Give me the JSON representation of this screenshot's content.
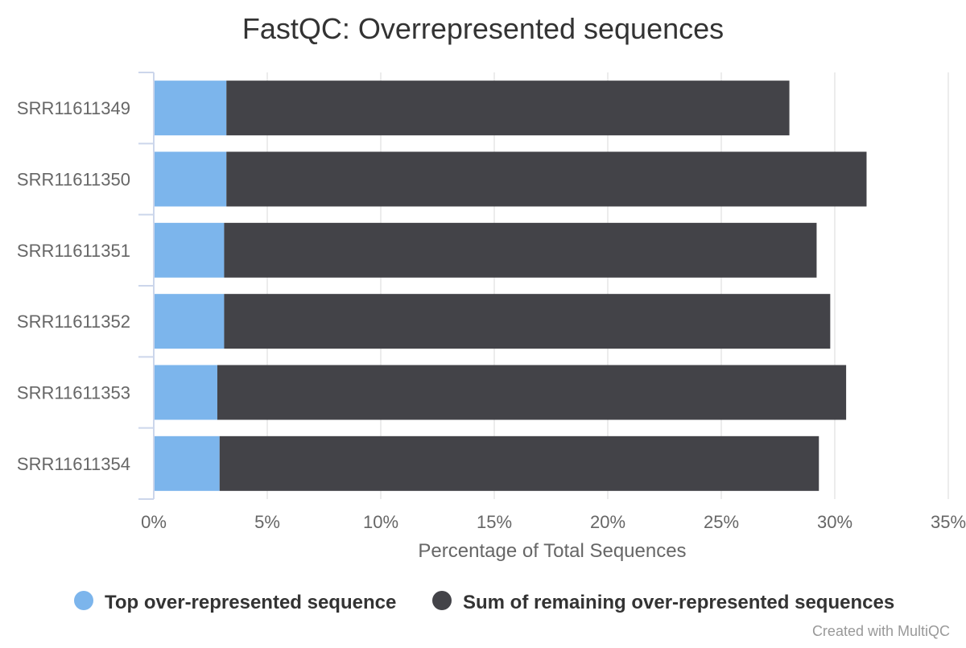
{
  "chart_data": {
    "type": "bar",
    "orientation": "horizontal",
    "stacked": true,
    "title": "FastQC: Overrepresented sequences",
    "xlabel": "Percentage of Total Sequences",
    "ylabel": "",
    "xlim": [
      0,
      35
    ],
    "x_ticks": [
      "0%",
      "5%",
      "10%",
      "15%",
      "20%",
      "25%",
      "30%",
      "35%"
    ],
    "grid": true,
    "legend_position": "bottom",
    "categories": [
      "SRR11611349",
      "SRR11611350",
      "SRR11611351",
      "SRR11611352",
      "SRR11611353",
      "SRR11611354"
    ],
    "series": [
      {
        "name": "Top over-represented sequence",
        "color": "#7cb5ec",
        "values": [
          3.2,
          3.2,
          3.1,
          3.1,
          2.8,
          2.9
        ]
      },
      {
        "name": "Sum of remaining over-represented sequences",
        "color": "#434348",
        "values": [
          24.8,
          28.2,
          26.1,
          26.7,
          27.7,
          26.4
        ]
      }
    ],
    "credit": "Created with MultiQC"
  }
}
